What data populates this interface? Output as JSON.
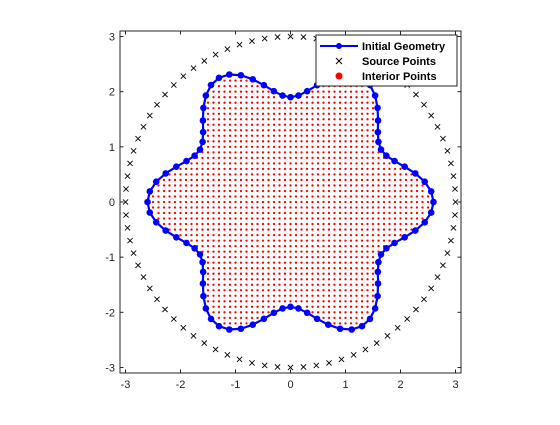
{
  "chart_data": {
    "type": "scatter",
    "title": "",
    "xlabel": "",
    "ylabel": "",
    "xlim": [
      -3.1,
      3.1
    ],
    "ylim": [
      -3.1,
      3.1
    ],
    "xticks": [
      -3,
      -2,
      -1,
      0,
      1,
      2,
      3
    ],
    "yticks": [
      -3,
      -2,
      -1,
      0,
      1,
      2,
      3
    ],
    "xtick_labels": [
      "-3",
      "-2",
      "-1",
      "0",
      "1",
      "2",
      "3"
    ],
    "ytick_labels": [
      "-3",
      "-2",
      "-1",
      "0",
      "1",
      "2",
      "3"
    ],
    "grid": false,
    "aspect": "equal",
    "legend_position": "top-right",
    "series": [
      {
        "name": "Initial Geometry",
        "kind": "line-with-markers",
        "color": "#0000ff",
        "marker": "filled-circle",
        "curve": "r(theta) = 2.25 + 0.35*cos(6*theta)",
        "points": 84
      },
      {
        "name": "Source Points",
        "kind": "scatter",
        "color": "#000000",
        "marker": "x",
        "curve": "circle r = 3.0",
        "points": 80
      },
      {
        "name": "Interior Points",
        "kind": "scatter",
        "color": "#ff0000",
        "marker": "dot",
        "grid_spacing": 0.1,
        "region": "inside Initial Geometry"
      }
    ]
  }
}
